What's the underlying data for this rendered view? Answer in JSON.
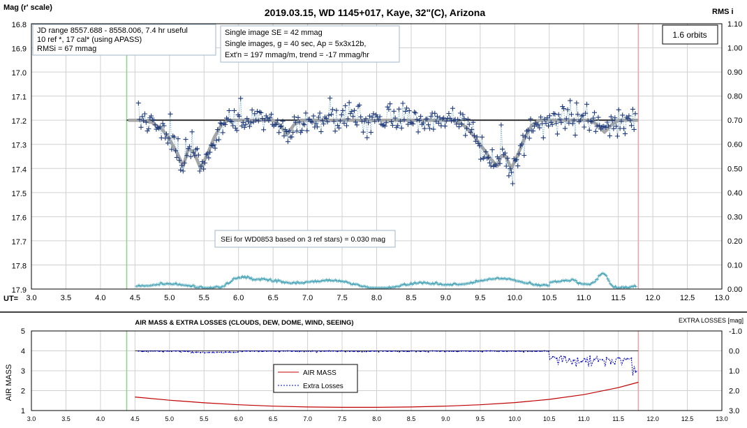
{
  "chart_data": [
    {
      "type": "scatter",
      "title": "2019.03.15, WD 1145+017, Kaye, 32\"(C), Arizona",
      "y_left_label": "Mag (r' scale)",
      "y_right_label": "RMS i",
      "x_label": "UT=",
      "x_range": [
        3.0,
        13.0
      ],
      "x_ticks": [
        "3.0",
        "3.5",
        "4.0",
        "4.5",
        "5.0",
        "5.5",
        "6.0",
        "6.5",
        "7.0",
        "7.5",
        "8.0",
        "8.5",
        "9.0",
        "9.5",
        "10.0",
        "10.5",
        "11.0",
        "11.5",
        "12.0",
        "12.5",
        "13.0"
      ],
      "y_left_range": [
        16.8,
        17.9
      ],
      "y_left_inverted": true,
      "y_left_ticks": [
        "16.8",
        "16.9",
        "17.0",
        "17.1",
        "17.2",
        "17.3",
        "17.4",
        "17.5",
        "17.6",
        "17.7",
        "17.8",
        "17.9"
      ],
      "y_right_range": [
        0.0,
        1.1
      ],
      "y_right_ticks": [
        "1.10",
        "1.00",
        "0.90",
        "0.80",
        "0.70",
        "0.60",
        "0.50",
        "0.40",
        "0.30",
        "0.20",
        "0.10",
        "0.00"
      ],
      "vertical_markers": [
        {
          "x": 4.38,
          "color": "#8fd08f"
        },
        {
          "x": 11.79,
          "color": "#f2a0a0"
        }
      ],
      "reference_line": {
        "y": 17.2,
        "x_start": 4.38,
        "x_end": 11.79,
        "color": "#333333"
      },
      "model_curve": {
        "color": "#a6a6a6",
        "points": [
          [
            4.4,
            17.2
          ],
          [
            4.6,
            17.2
          ],
          [
            4.75,
            17.21
          ],
          [
            4.9,
            17.24
          ],
          [
            5.0,
            17.28
          ],
          [
            5.1,
            17.33
          ],
          [
            5.2,
            17.39
          ],
          [
            5.27,
            17.32
          ],
          [
            5.35,
            17.33
          ],
          [
            5.45,
            17.4
          ],
          [
            5.55,
            17.34
          ],
          [
            5.65,
            17.27
          ],
          [
            5.75,
            17.22
          ],
          [
            5.85,
            17.2
          ],
          [
            6.0,
            17.2
          ],
          [
            6.5,
            17.2
          ],
          [
            6.6,
            17.22
          ],
          [
            6.7,
            17.26
          ],
          [
            6.8,
            17.22
          ],
          [
            6.9,
            17.2
          ],
          [
            7.5,
            17.2
          ],
          [
            9.1,
            17.2
          ],
          [
            9.2,
            17.21
          ],
          [
            9.3,
            17.23
          ],
          [
            9.42,
            17.27
          ],
          [
            9.55,
            17.32
          ],
          [
            9.65,
            17.36
          ],
          [
            9.75,
            17.39
          ],
          [
            9.8,
            17.35
          ],
          [
            9.87,
            17.35
          ],
          [
            9.95,
            17.4
          ],
          [
            10.05,
            17.34
          ],
          [
            10.15,
            17.27
          ],
          [
            10.25,
            17.22
          ],
          [
            10.35,
            17.2
          ],
          [
            11.1,
            17.2
          ],
          [
            11.2,
            17.22
          ],
          [
            11.3,
            17.25
          ],
          [
            11.4,
            17.22
          ],
          [
            11.5,
            17.2
          ],
          [
            11.79,
            17.2
          ]
        ]
      },
      "series": [
        {
          "name": "",
          "color": "#1f3a7a",
          "marker": "+",
          "y_axis": "left"
        },
        {
          "name": "",
          "color": "#4aa6b8",
          "marker": "+",
          "y_axis": "right"
        }
      ],
      "annotations": [
        {
          "lines": [
            "JD range 8557.688 - 8558.006, 7.4 hr useful",
            "10 ref *, 17 cal* (using APASS)",
            "RMSi = 67 mmag"
          ]
        },
        {
          "lines": [
            "Single image SE = 42 mmag",
            "Single images, g = 40 sec, Ap = 5x3x12b,",
            "Ext'n = 197 mmag/m, trend = -17 mmag/hr"
          ]
        },
        {
          "lines": [
            "1.6 orbits"
          ]
        },
        {
          "lines": [
            "SEi for WD0853 based on 3 ref stars) = 0.030 mag"
          ]
        }
      ]
    },
    {
      "type": "line",
      "title": "AIR MASS & EXTRA LOSSES (CLOUDS, DEW, DOME, WIND, SEEING)",
      "y_left_label": "AIR MASS",
      "y_right_label": "EXTRA LOSSES [mag]",
      "x_range": [
        3.0,
        13.0
      ],
      "x_ticks": [
        "3.0",
        "3.5",
        "4.0",
        "4.5",
        "5.0",
        "5.5",
        "6.0",
        "6.5",
        "7.0",
        "7.5",
        "8.0",
        "8.5",
        "9.0",
        "9.5",
        "10.0",
        "10.5",
        "11.0",
        "11.5",
        "12.0",
        "12.5",
        "13.0"
      ],
      "y_left_range": [
        1,
        5
      ],
      "y_left_ticks": [
        "5",
        "4",
        "3",
        "2",
        "1"
      ],
      "y_right_range": [
        -1.0,
        3.0
      ],
      "y_right_ticks": [
        "-1.0",
        "0.0",
        "1.0",
        "2.0",
        "3.0"
      ],
      "vertical_markers": [
        {
          "x": 4.38,
          "color": "#8fd08f"
        },
        {
          "x": 11.79,
          "color": "#f2a0a0"
        }
      ],
      "reference_line": {
        "y": 4.0,
        "x_start": 4.5,
        "x_end": 11.79,
        "color": "#333333"
      },
      "legend": {
        "placement": "center"
      },
      "series": [
        {
          "name": "AIR MASS",
          "color": "#c00000",
          "x": [
            4.5,
            5.0,
            5.5,
            6.0,
            6.5,
            7.0,
            7.5,
            8.0,
            8.5,
            9.0,
            9.5,
            10.0,
            10.5,
            11.0,
            11.5,
            11.79
          ],
          "values": [
            1.68,
            1.52,
            1.39,
            1.29,
            1.22,
            1.18,
            1.16,
            1.16,
            1.18,
            1.22,
            1.29,
            1.4,
            1.56,
            1.8,
            2.15,
            2.42
          ]
        },
        {
          "name": "Extra Losses",
          "color": "#0000c0",
          "marker": ".",
          "y_axis": "right"
        }
      ]
    }
  ]
}
